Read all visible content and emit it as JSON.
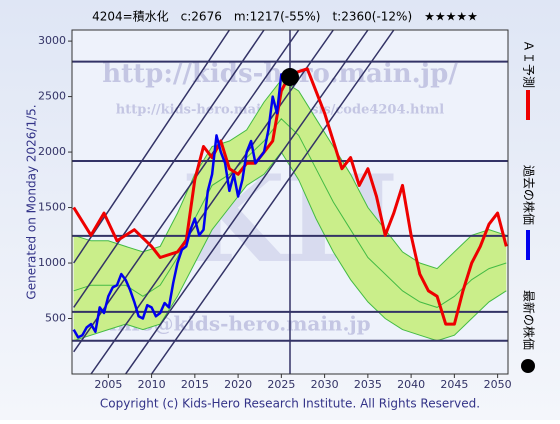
{
  "chart_data": {
    "type": "line",
    "title": "4204=積水化　c:2676　m:1217(-55%)　t:2360(-12%)　★★★★★",
    "generated": "Generated on Monday 2026/1/5.",
    "copyright": "Copyright (c) Kids-Hero Research Institute. All Rights Reserved.",
    "watermarks": [
      "http://kids-hero.main.jp/",
      "http://kids-hero.main.jp/basis/code4204.html",
      "info@kids-hero.main.jp",
      "KH"
    ],
    "xlim": [
      2000.8,
      2051.2
    ],
    "ylim": [
      0,
      3100
    ],
    "xticks": [
      2005,
      2010,
      2015,
      2020,
      2025,
      2030,
      2035,
      2040,
      2045,
      2050
    ],
    "yticks": [
      500,
      1000,
      1500,
      2000,
      2500,
      3000
    ],
    "band": {
      "color": "#fff8b0",
      "line_color": "#44bb44",
      "x": [
        2001,
        2003,
        2005,
        2007,
        2009,
        2011,
        2013,
        2015,
        2017,
        2019,
        2021,
        2023,
        2025,
        2027,
        2029,
        2031,
        2033,
        2035,
        2037,
        2039,
        2041,
        2043,
        2045,
        2047,
        2049,
        2051
      ],
      "upper": [
        1250,
        1200,
        1200,
        1150,
        1100,
        1150,
        1450,
        1800,
        2050,
        2100,
        2200,
        2450,
        2650,
        2550,
        2300,
        2050,
        1800,
        1500,
        1300,
        1100,
        1000,
        950,
        1100,
        1250,
        1300,
        1250
      ],
      "middle": [
        750,
        800,
        800,
        800,
        700,
        800,
        1050,
        1400,
        1700,
        1800,
        1950,
        2100,
        2300,
        2150,
        1850,
        1550,
        1300,
        1050,
        900,
        750,
        650,
        600,
        700,
        850,
        950,
        1000
      ],
      "lower": [
        300,
        350,
        400,
        450,
        400,
        450,
        700,
        1000,
        1300,
        1500,
        1700,
        1800,
        2000,
        1750,
        1400,
        1100,
        850,
        650,
        500,
        400,
        350,
        300,
        350,
        500,
        650,
        750
      ]
    },
    "levels": [
      2815,
      1920,
      1245,
      560,
      300
    ],
    "trend_lines": [
      {
        "x": [
          2001,
          2019
        ],
        "values": [
          1000,
          3100
        ]
      },
      {
        "x": [
          2001,
          2023
        ],
        "values": [
          600,
          3100
        ]
      },
      {
        "x": [
          2001,
          2027
        ],
        "values": [
          200,
          3100
        ]
      },
      {
        "x": [
          2003,
          2031
        ],
        "values": [
          0,
          3100
        ]
      },
      {
        "x": [
          2007,
          2035
        ],
        "values": [
          0,
          3100
        ]
      },
      {
        "x": [
          2010,
          2038
        ],
        "values": [
          0,
          3100
        ]
      }
    ],
    "series": [
      {
        "name": "ＡＩ予測",
        "color": "#ee0000",
        "x": [
          2001,
          2003,
          2004.5,
          2006,
          2008,
          2010,
          2011,
          2013,
          2014,
          2015,
          2016,
          2017,
          2018,
          2019,
          2020,
          2021,
          2022,
          2024,
          2025,
          2026,
          2028,
          2030,
          2031,
          2032,
          2033,
          2034,
          2035,
          2036,
          2037,
          2038,
          2039,
          2040,
          2041,
          2042,
          2043,
          2044,
          2045,
          2046,
          2047,
          2048,
          2049,
          2050,
          2051
        ],
        "values": [
          1500,
          1250,
          1450,
          1200,
          1300,
          1150,
          1050,
          1100,
          1200,
          1750,
          2050,
          1950,
          2100,
          1850,
          1800,
          1900,
          1900,
          2100,
          2550,
          2700,
          2750,
          2350,
          2100,
          1850,
          1950,
          1700,
          1850,
          1600,
          1250,
          1450,
          1700,
          1250,
          900,
          750,
          700,
          450,
          450,
          750,
          1000,
          1150,
          1350,
          1450,
          1150
        ]
      },
      {
        "name": "過去の株価",
        "color": "#0000ee",
        "x": [
          2001,
          2001.5,
          2002,
          2002.5,
          2003,
          2003.5,
          2004,
          2004.5,
          2005,
          2005.5,
          2006,
          2006.5,
          2007,
          2007.5,
          2008,
          2008.5,
          2009,
          2009.5,
          2010,
          2010.5,
          2011,
          2011.5,
          2012,
          2012.5,
          2013,
          2013.5,
          2014,
          2014.5,
          2015,
          2015.5,
          2016,
          2016.5,
          2017,
          2017.5,
          2018,
          2018.5,
          2019,
          2019.5,
          2020,
          2020.5,
          2021,
          2021.5,
          2022,
          2022.5,
          2023,
          2023.5,
          2024,
          2024.5,
          2025,
          2025.5
        ],
        "values": [
          400,
          330,
          350,
          420,
          450,
          380,
          600,
          550,
          700,
          780,
          800,
          900,
          850,
          760,
          650,
          520,
          500,
          620,
          600,
          520,
          550,
          640,
          600,
          820,
          1000,
          1120,
          1150,
          1300,
          1400,
          1250,
          1300,
          1650,
          1800,
          2150,
          2000,
          1900,
          1650,
          1800,
          1600,
          1750,
          2000,
          2100,
          1900,
          1950,
          2000,
          2200,
          2500,
          2350,
          2700,
          2650
        ]
      }
    ],
    "current": {
      "name": "最新の株価",
      "color": "#000000",
      "x": 2026,
      "value": 2676
    }
  }
}
